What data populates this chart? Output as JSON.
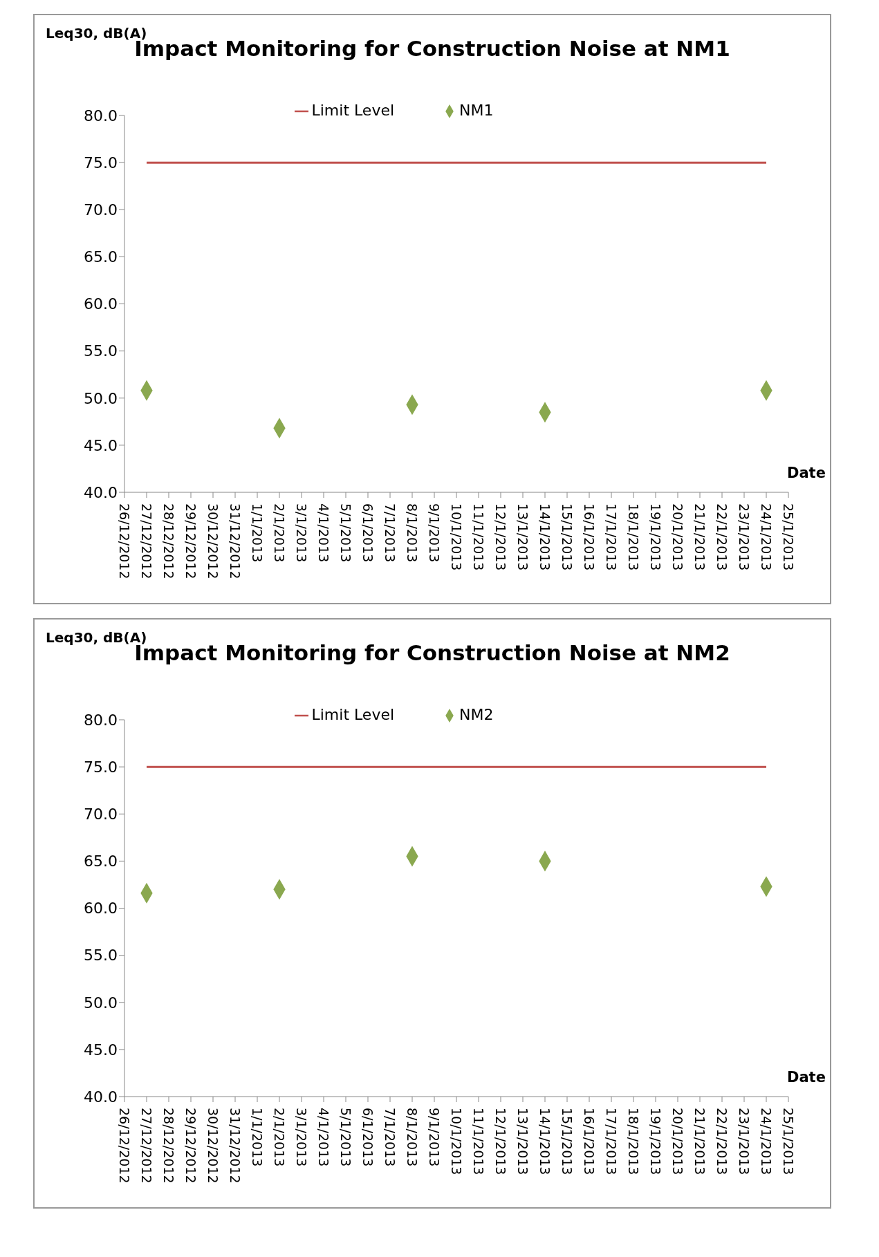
{
  "chart_data": [
    {
      "type": "scatter",
      "title": "Impact Monitoring for Construction Noise at NM1",
      "xlabel": "Date",
      "ylabel": "Leq30, dB(A)",
      "categories": [
        "26/12/2012",
        "27/12/2012",
        "28/12/2012",
        "29/12/2012",
        "30/12/2012",
        "31/12/2012",
        "1/1/2013",
        "2/1/2013",
        "3/1/2013",
        "4/1/2013",
        "5/1/2013",
        "6/1/2013",
        "7/1/2013",
        "8/1/2013",
        "9/1/2013",
        "10/1/2013",
        "11/1/2013",
        "12/1/2013",
        "13/1/2013",
        "14/1/2013",
        "15/1/2013",
        "16/1/2013",
        "17/1/2013",
        "18/1/2013",
        "19/1/2013",
        "20/1/2013",
        "21/1/2013",
        "22/1/2013",
        "23/1/2013",
        "24/1/2013",
        "25/1/2013"
      ],
      "ylim": [
        40,
        80
      ],
      "yticks": [
        {
          "value": 40,
          "label": "40.0"
        },
        {
          "value": 45,
          "label": "45.0"
        },
        {
          "value": 50,
          "label": "50.0"
        },
        {
          "value": 55,
          "label": "55.0"
        },
        {
          "value": 60,
          "label": "60.0"
        },
        {
          "value": 65,
          "label": "65.0"
        },
        {
          "value": 70,
          "label": "70.0"
        },
        {
          "value": 75,
          "label": "75.0"
        },
        {
          "value": 80,
          "label": "80.0"
        }
      ],
      "grid": false,
      "legend": "top",
      "series": [
        {
          "name": "Limit Level",
          "type": "line",
          "color": "#c0504d",
          "marker": "none",
          "line_style": "solid",
          "values": [
            null,
            75,
            75,
            75,
            75,
            75,
            75,
            75,
            75,
            75,
            75,
            75,
            75,
            75,
            75,
            75,
            75,
            75,
            75,
            75,
            75,
            75,
            75,
            75,
            75,
            75,
            75,
            75,
            75,
            75,
            null
          ]
        },
        {
          "name": "NM1",
          "color": "#8aa84f",
          "marker": "diamond",
          "values": [
            null,
            50.8,
            null,
            null,
            null,
            null,
            null,
            46.8,
            null,
            null,
            null,
            null,
            null,
            49.3,
            null,
            null,
            null,
            null,
            null,
            48.5,
            null,
            null,
            null,
            null,
            null,
            null,
            null,
            null,
            null,
            50.8,
            null
          ]
        }
      ]
    },
    {
      "type": "scatter",
      "title": "Impact Monitoring for Construction Noise at NM2",
      "xlabel": "Date",
      "ylabel": "Leq30, dB(A)",
      "categories": [
        "26/12/2012",
        "27/12/2012",
        "28/12/2012",
        "29/12/2012",
        "30/12/2012",
        "31/12/2012",
        "1/1/2013",
        "2/1/2013",
        "3/1/2013",
        "4/1/2013",
        "5/1/2013",
        "6/1/2013",
        "7/1/2013",
        "8/1/2013",
        "9/1/2013",
        "10/1/2013",
        "11/1/2013",
        "12/1/2013",
        "13/1/2013",
        "14/1/2013",
        "15/1/2013",
        "16/1/2013",
        "17/1/2013",
        "18/1/2013",
        "19/1/2013",
        "20/1/2013",
        "21/1/2013",
        "22/1/2013",
        "23/1/2013",
        "24/1/2013",
        "25/1/2013"
      ],
      "ylim": [
        40,
        80
      ],
      "yticks": [
        {
          "value": 40,
          "label": "40.0"
        },
        {
          "value": 45,
          "label": "45.0"
        },
        {
          "value": 50,
          "label": "50.0"
        },
        {
          "value": 55,
          "label": "55.0"
        },
        {
          "value": 60,
          "label": "60.0"
        },
        {
          "value": 65,
          "label": "65.0"
        },
        {
          "value": 70,
          "label": "70.0"
        },
        {
          "value": 75,
          "label": "75.0"
        },
        {
          "value": 80,
          "label": "80.0"
        }
      ],
      "grid": false,
      "legend": "top",
      "series": [
        {
          "name": "Limit Level",
          "type": "line",
          "color": "#c0504d",
          "marker": "none",
          "line_style": "solid",
          "values": [
            null,
            75,
            75,
            75,
            75,
            75,
            75,
            75,
            75,
            75,
            75,
            75,
            75,
            75,
            75,
            75,
            75,
            75,
            75,
            75,
            75,
            75,
            75,
            75,
            75,
            75,
            75,
            75,
            75,
            75,
            null
          ]
        },
        {
          "name": "NM2",
          "color": "#8aa84f",
          "marker": "diamond",
          "values": [
            null,
            61.6,
            null,
            null,
            null,
            null,
            null,
            62.0,
            null,
            null,
            null,
            null,
            null,
            65.5,
            null,
            null,
            null,
            null,
            null,
            65.0,
            null,
            null,
            null,
            null,
            null,
            null,
            null,
            null,
            null,
            62.3,
            null
          ]
        }
      ]
    }
  ]
}
